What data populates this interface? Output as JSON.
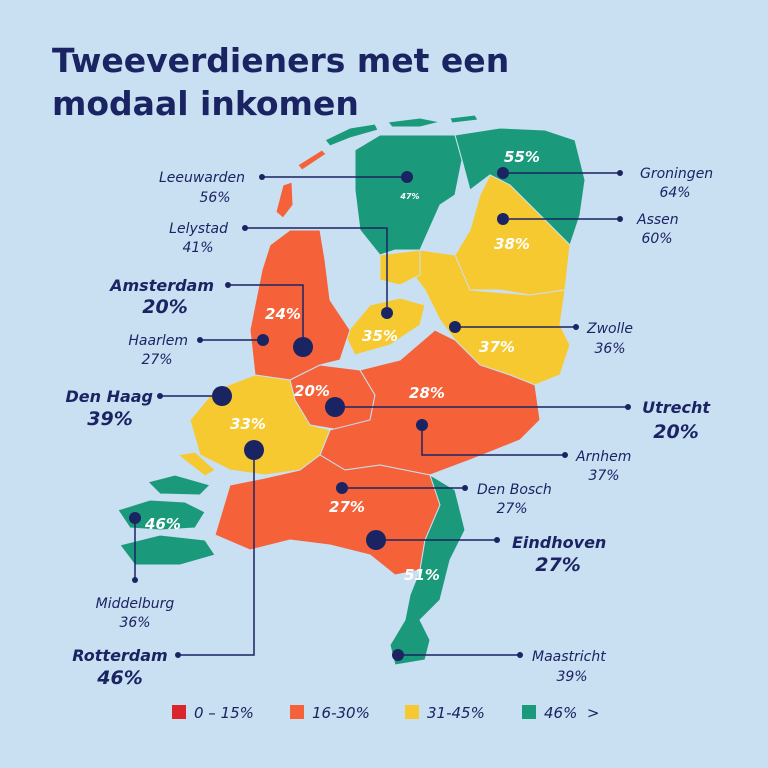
{
  "title": [
    "Tweeverdieners met een",
    "modaal inkomen"
  ],
  "provinces": [
    {
      "label": "55%"
    },
    {
      "label": "47%"
    },
    {
      "label": "38%"
    },
    {
      "label": "35%"
    },
    {
      "label": "37%"
    },
    {
      "label": "24%"
    },
    {
      "label": "20%"
    },
    {
      "label": "28%"
    },
    {
      "label": "33%"
    },
    {
      "label": "46%"
    },
    {
      "label": "27%"
    },
    {
      "label": "51%"
    }
  ],
  "cities": [
    {
      "name": "Leeuwarden",
      "value": "56%"
    },
    {
      "name": "Groningen",
      "value": "64%"
    },
    {
      "name": "Lelystad",
      "value": "41%"
    },
    {
      "name": "Assen",
      "value": "60%"
    },
    {
      "name": "Amsterdam",
      "value": "20%"
    },
    {
      "name": "Haarlem",
      "value": "27%"
    },
    {
      "name": "Zwolle",
      "value": "36%"
    },
    {
      "name": "Den Haag",
      "value": "39%"
    },
    {
      "name": "Utrecht",
      "value": "20%"
    },
    {
      "name": "Arnhem",
      "value": "37%"
    },
    {
      "name": "Den Bosch",
      "value": "27%"
    },
    {
      "name": "Eindhoven",
      "value": "27%"
    },
    {
      "name": "Middelburg",
      "value": "36%"
    },
    {
      "name": "Rotterdam",
      "value": "46%"
    },
    {
      "name": "Maastricht",
      "value": "39%"
    }
  ],
  "legend": [
    {
      "label": "0 – 15%",
      "color": "#d9262d"
    },
    {
      "label": "16-30%",
      "color": "#f5623a"
    },
    {
      "label": "31-45%",
      "color": "#f7c930"
    },
    {
      "label": "46%  >",
      "color": "#1a9a7a"
    }
  ]
}
